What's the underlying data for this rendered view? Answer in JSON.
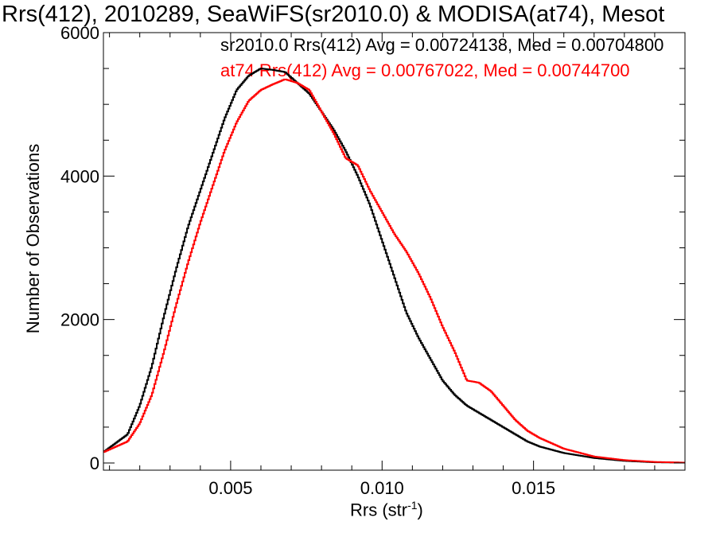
{
  "chart_data": {
    "type": "line",
    "title": "Rrs(412), 2010289, SeaWiFS(sr2010.0) & MODISA(at74), Mesot",
    "xlabel": "Rrs (str",
    "xlabel_sup": "-1",
    "xlabel_close": ")",
    "ylabel": "Number of Observations",
    "xlim": [
      0.0008,
      0.02
    ],
    "ylim": [
      -100,
      6000
    ],
    "xticks": [
      0.005,
      0.01,
      0.015
    ],
    "xtick_labels": [
      "0.005",
      "0.010",
      "0.015"
    ],
    "yticks": [
      0,
      2000,
      4000,
      6000
    ],
    "ytick_labels": [
      "0",
      "2000",
      "4000",
      "6000"
    ],
    "legend": [
      {
        "text": "sr2010.0 Rrs(412) Avg = 0.00724138, Med = 0.00704800",
        "color": "#000000"
      },
      {
        "text": "at74 Rrs(412) Avg = 0.00767022, Med = 0.00744700",
        "color": "#ff0000"
      }
    ],
    "series": [
      {
        "color": "#000000",
        "x": [
          0.0008,
          0.0016,
          0.002,
          0.0024,
          0.0028,
          0.0032,
          0.0036,
          0.004,
          0.0044,
          0.0048,
          0.0052,
          0.0056,
          0.006,
          0.0064,
          0.0068,
          0.0072,
          0.0076,
          0.008,
          0.0084,
          0.0088,
          0.0092,
          0.0096,
          0.01,
          0.0104,
          0.0108,
          0.0112,
          0.0116,
          0.012,
          0.0124,
          0.0128,
          0.0132,
          0.0136,
          0.014,
          0.0144,
          0.0148,
          0.0152,
          0.016,
          0.017,
          0.018,
          0.019,
          0.02
        ],
        "y": [
          150,
          400,
          800,
          1350,
          2050,
          2700,
          3300,
          3800,
          4300,
          4800,
          5200,
          5400,
          5500,
          5480,
          5450,
          5300,
          5150,
          4900,
          4650,
          4350,
          4000,
          3600,
          3100,
          2600,
          2100,
          1750,
          1450,
          1150,
          950,
          800,
          700,
          600,
          500,
          400,
          300,
          230,
          140,
          70,
          30,
          10,
          5
        ]
      },
      {
        "color": "#ff0000",
        "x": [
          0.0008,
          0.0016,
          0.002,
          0.0024,
          0.0028,
          0.0032,
          0.0036,
          0.004,
          0.0044,
          0.0048,
          0.0052,
          0.0056,
          0.006,
          0.0064,
          0.0068,
          0.0072,
          0.0076,
          0.008,
          0.0084,
          0.0088,
          0.0092,
          0.0096,
          0.01,
          0.0104,
          0.0108,
          0.0112,
          0.0116,
          0.012,
          0.0124,
          0.0128,
          0.0132,
          0.0136,
          0.014,
          0.0144,
          0.0148,
          0.0152,
          0.016,
          0.017,
          0.018,
          0.019,
          0.02
        ],
        "y": [
          150,
          300,
          550,
          950,
          1550,
          2200,
          2800,
          3350,
          3850,
          4350,
          4750,
          5050,
          5200,
          5280,
          5350,
          5300,
          5200,
          4900,
          4600,
          4250,
          4150,
          3800,
          3500,
          3200,
          2950,
          2650,
          2300,
          1900,
          1550,
          1150,
          1120,
          1000,
          800,
          600,
          450,
          350,
          200,
          90,
          40,
          15,
          5
        ]
      }
    ]
  }
}
